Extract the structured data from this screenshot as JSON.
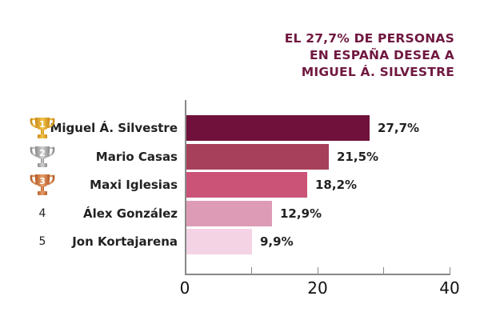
{
  "title": {
    "lines": [
      "EL 27,7% DE PERSONAS",
      "EN ESPAÑA DESEA A",
      "MIGUEL Á. SILVESTRE"
    ],
    "color": "#701840"
  },
  "chart_data": {
    "type": "bar",
    "orientation": "horizontal",
    "title": "EL 27,7% DE PERSONAS EN ESPAÑA DESEA A MIGUEL Á. SILVESTRE",
    "categories": [
      "Miguel Á. Silvestre",
      "Mario Casas",
      "Maxi Iglesias",
      "Álex González",
      "Jon Kortajarena"
    ],
    "values": [
      27.7,
      21.5,
      18.2,
      12.9,
      9.9
    ],
    "value_labels": [
      "27,7%",
      "21,5%",
      "18,2%",
      "12,9%",
      "9,9%"
    ],
    "ranks": [
      "1",
      "2",
      "3",
      "4",
      "5"
    ],
    "rank_icons": [
      "gold-trophy",
      "silver-trophy",
      "bronze-trophy",
      null,
      null
    ],
    "colors": [
      "#70113b",
      "#a6405b",
      "#cb5377",
      "#de9bb5",
      "#f4d3e5"
    ],
    "xlabel": "",
    "ylabel": "",
    "xlim": [
      0,
      40
    ],
    "x_ticks": [
      0,
      10,
      20,
      30,
      40
    ],
    "x_tick_labels": [
      "0",
      "",
      "20",
      "",
      "40"
    ],
    "grid": false,
    "legend": null
  }
}
